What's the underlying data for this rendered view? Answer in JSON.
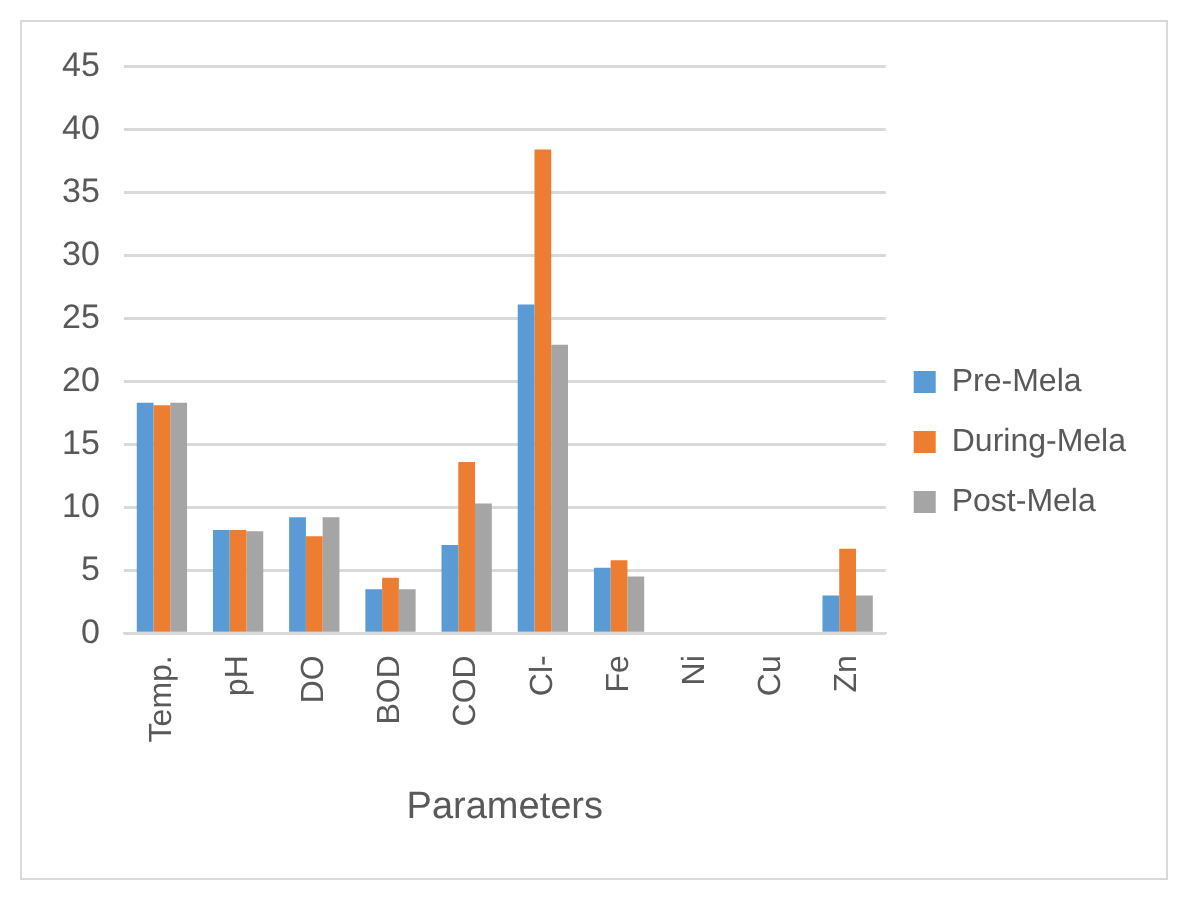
{
  "chart_data": {
    "type": "bar",
    "xlabel": "Parameters",
    "categories": [
      "Temp.",
      "pH",
      "DO",
      "BOD",
      "COD",
      "Cl-",
      "Fe",
      "Ni",
      "Cu",
      "Zn"
    ],
    "series": [
      {
        "name": "Pre-Mela",
        "color": "#5b9bd5",
        "values": [
          18.3,
          8.2,
          9.2,
          3.5,
          7.0,
          26.1,
          5.2,
          0,
          0,
          3.0
        ]
      },
      {
        "name": "During-Mela",
        "color": "#ed7d31",
        "values": [
          18.1,
          8.2,
          7.7,
          4.4,
          13.6,
          38.4,
          5.8,
          0,
          0,
          6.7
        ]
      },
      {
        "name": "Post-Mela",
        "color": "#a5a5a5",
        "values": [
          18.3,
          8.1,
          9.2,
          3.5,
          10.3,
          22.9,
          4.5,
          0,
          0,
          3.0
        ]
      }
    ],
    "ylim": [
      0,
      45
    ],
    "yticks": [
      0,
      5,
      10,
      15,
      20,
      25,
      30,
      35,
      40,
      45
    ],
    "grid": "y",
    "legend": "right"
  }
}
